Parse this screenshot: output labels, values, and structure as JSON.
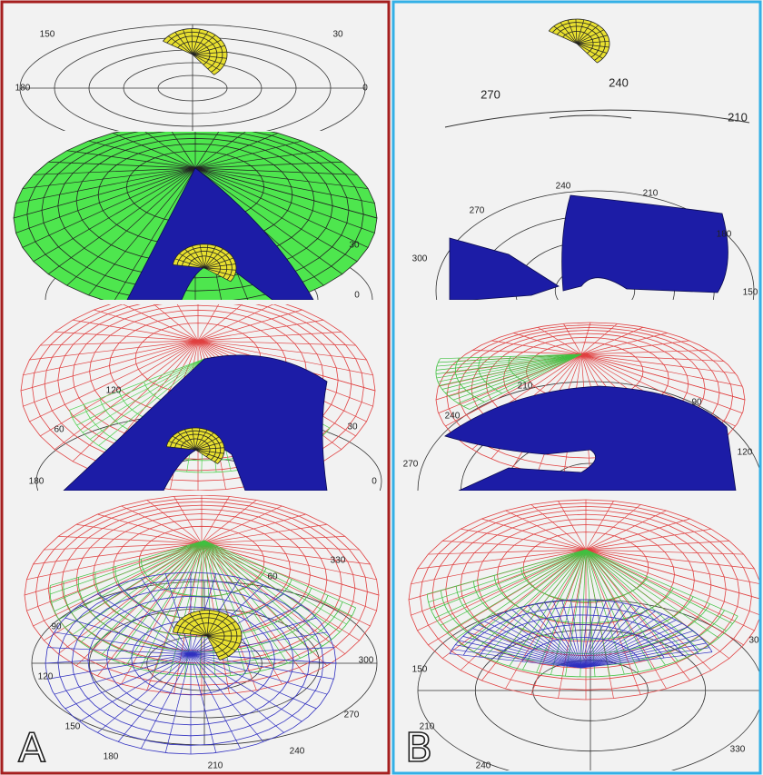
{
  "panels": [
    {
      "label": "A",
      "plots": [
        {
          "angle_labels": [
            "150",
            "30",
            "180",
            "0"
          ]
        },
        {
          "angle_labels": [
            "30",
            "0"
          ]
        },
        {
          "angle_labels": [
            "120",
            "60",
            "30",
            "180",
            "0"
          ]
        },
        {
          "angle_labels": [
            "90",
            "60",
            "330",
            "120",
            "300",
            "150",
            "270",
            "180",
            "240",
            "210"
          ]
        }
      ]
    },
    {
      "label": "B",
      "plots": [
        {
          "angle_labels": [
            "270",
            "240",
            "210"
          ]
        },
        {
          "angle_labels": [
            "240",
            "210",
            "270",
            "180",
            "300",
            "150"
          ]
        },
        {
          "angle_labels": [
            "210",
            "240",
            "270",
            "90",
            "120"
          ]
        },
        {
          "angle_labels": [
            "30",
            "150",
            "210",
            "240",
            "330"
          ]
        }
      ]
    }
  ]
}
